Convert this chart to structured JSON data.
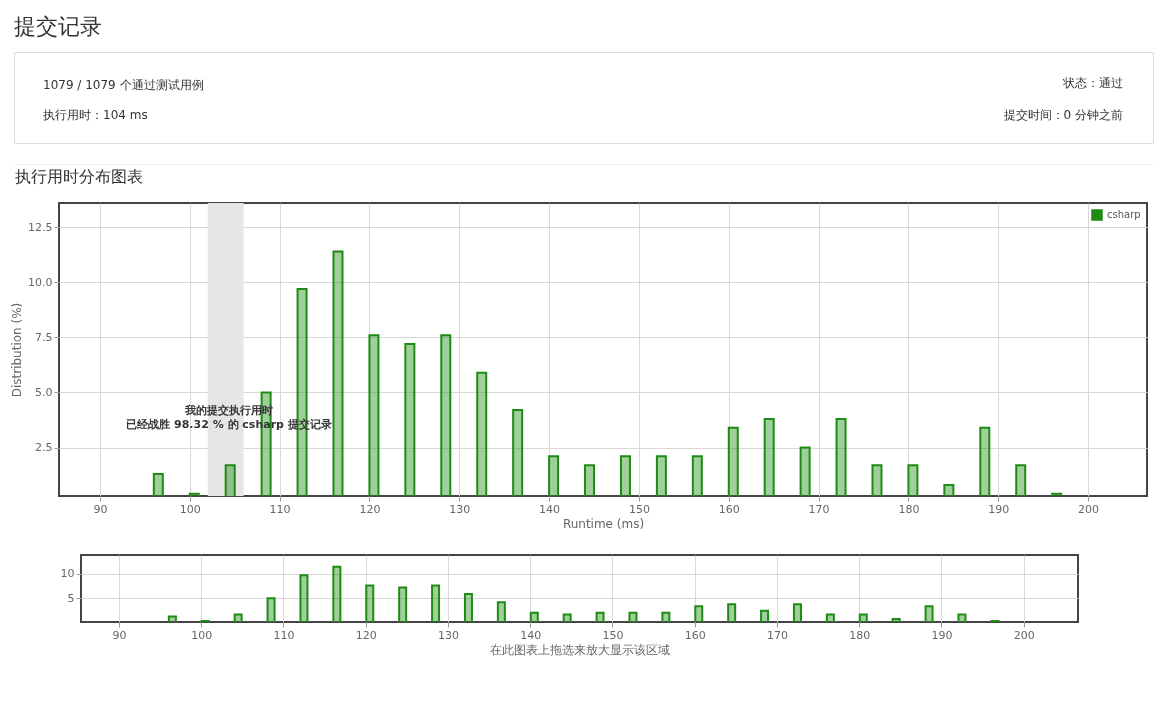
{
  "chart_data": [
    {
      "type": "other",
      "title": "提交记录",
      "annotations": [
        "1079 / 1079 个通过测试用例",
        "执行用时：104 ms",
        "状态：通过",
        "提交时间：0 分钟之前"
      ]
    },
    {
      "type": "bar",
      "title": "执行用时分布图表",
      "xlabel": "Runtime (ms)",
      "ylabel": "Distribution (%)",
      "x": [
        96.5,
        100.5,
        104.5,
        108.5,
        112.5,
        116.5,
        120.5,
        124.5,
        128.5,
        132.5,
        136.5,
        140.5,
        144.5,
        148.5,
        152.5,
        156.5,
        160.5,
        164.5,
        168.5,
        172.5,
        176.5,
        180.5,
        184.5,
        188.5,
        192.5,
        196.5
      ],
      "series": [
        {
          "name": "csharp",
          "color": "#1e8c14",
          "values": [
            1.3,
            0.4,
            1.7,
            5.0,
            9.7,
            11.4,
            7.6,
            7.2,
            7.6,
            5.9,
            4.2,
            2.1,
            1.7,
            2.1,
            2.1,
            2.1,
            3.4,
            3.8,
            2.5,
            3.8,
            1.7,
            1.7,
            0.8,
            3.4,
            1.7,
            0.4
          ]
        }
      ],
      "xlim": [
        86,
        206
      ],
      "xticks": [
        90,
        100,
        110,
        120,
        130,
        140,
        150,
        160,
        170,
        180,
        190,
        200
      ],
      "ylim": [
        0.3,
        13.6
      ],
      "yticks": [
        2.5,
        {
          "value": 5,
          "label": "5.0"
        },
        7.5,
        {
          "value": 10,
          "label": "10.0"
        },
        12.5
      ],
      "bands": [
        {
          "axis": "x",
          "from": 102,
          "to": 106,
          "color": "#e6e6e6"
        }
      ],
      "annotations": [
        "我的提交执行用时",
        "已经战胜 98.32 % 的 csharp 提交记录"
      ],
      "grid": true,
      "legend": "top right"
    },
    {
      "type": "bar",
      "xlabel": "在此图表上拖选来放大显示该区域",
      "x": [
        96.5,
        100.5,
        104.5,
        108.5,
        112.5,
        116.5,
        120.5,
        124.5,
        128.5,
        132.5,
        136.5,
        140.5,
        144.5,
        148.5,
        152.5,
        156.5,
        160.5,
        164.5,
        168.5,
        172.5,
        176.5,
        180.5,
        184.5,
        188.5,
        192.5,
        196.5
      ],
      "series": [
        {
          "color": "#1e8c14",
          "values": [
            1.3,
            0.4,
            1.7,
            5.0,
            9.7,
            11.4,
            7.6,
            7.2,
            7.6,
            5.9,
            4.2,
            2.1,
            1.7,
            2.1,
            2.1,
            2.1,
            3.4,
            3.8,
            2.5,
            3.8,
            1.7,
            1.7,
            0.8,
            3.4,
            1.7,
            0.4
          ]
        }
      ],
      "xlim": [
        86,
        206
      ],
      "xticks": [
        90,
        100,
        110,
        120,
        130,
        140,
        150,
        160,
        170,
        180,
        190,
        200
      ],
      "ylim": [
        0.2,
        13.8
      ],
      "yticks": [
        5,
        10
      ],
      "grid": true
    }
  ]
}
